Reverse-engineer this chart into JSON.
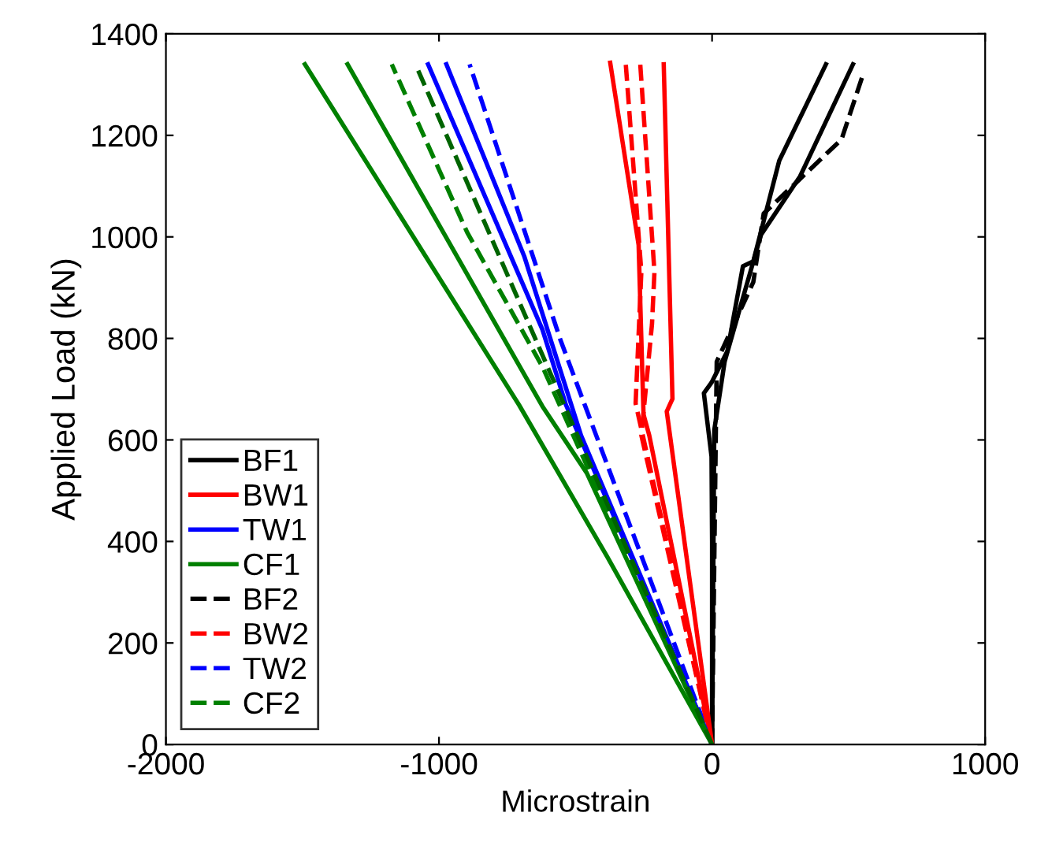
{
  "chart_data": {
    "type": "line",
    "xlabel": "Microstrain",
    "ylabel": "Applied Load (kN)",
    "xlim": [
      -2000,
      1000
    ],
    "xticks": [
      -2000,
      -1000,
      0,
      1000
    ],
    "ylim": [
      0,
      1400
    ],
    "yticks": [
      0,
      200,
      400,
      600,
      800,
      1000,
      1200,
      1400
    ],
    "grid": false,
    "legend": "bottom left",
    "marker": "none",
    "series": [
      {
        "name": "BF1",
        "color": "#000000",
        "line_style": "solid",
        "x": [
          0,
          0,
          -2,
          -30,
          -2,
          56,
          113,
          151,
          246,
          417
        ],
        "values": [
          0,
          400,
          567,
          692,
          713,
          775,
          942,
          952,
          1150,
          1340
        ]
      },
      {
        "name": "BW1",
        "color": "#ff0000",
        "line_style": "solid",
        "x": [
          0,
          -230,
          -251,
          -269,
          -373
        ],
        "values": [
          0,
          609,
          650,
          984,
          1343
        ]
      },
      {
        "name": "TW1",
        "color": "#0000ff",
        "line_style": "solid",
        "x": [
          0,
          -535,
          -621,
          -1040
        ],
        "values": [
          0,
          669,
          817,
          1340
        ]
      },
      {
        "name": "CF1",
        "color": "#008000",
        "line_style": "solid",
        "x": [
          0,
          -383,
          -707,
          -1491
        ],
        "values": [
          0,
          369,
          669,
          1340
        ]
      },
      {
        "name": "BF2",
        "color": "#000000",
        "line_style": "dashed",
        "x": [
          0,
          17,
          151,
          189,
          474,
          551
        ],
        "values": [
          0,
          754,
          911,
          1046,
          1192,
          1317
        ]
      },
      {
        "name": "BW2",
        "color": "#ff0000",
        "line_style": "dashed",
        "x": [
          0,
          -280,
          -259,
          -316
        ],
        "values": [
          0,
          672,
          931,
          1340
        ]
      },
      {
        "name": "TW2",
        "color": "#0000ff",
        "line_style": "dashed",
        "x": [
          0,
          -554,
          -888
        ],
        "values": [
          0,
          795,
          1340
        ]
      },
      {
        "name": "CF2",
        "color": "#008000",
        "line_style": "dashed",
        "x": [
          0,
          -621,
          -897,
          -1173
        ],
        "values": [
          0,
          744,
          1009,
          1340
        ]
      },
      {
        "color": "#000000",
        "line_style": "solid",
        "x": [
          0,
          8,
          46,
          179,
          322,
          516
        ],
        "values": [
          0,
          619,
          754,
          1004,
          1119,
          1340
        ]
      },
      {
        "color": "#ff0000",
        "line_style": "solid",
        "x": [
          0,
          -166,
          -145,
          -177
        ],
        "values": [
          0,
          656,
          681,
          1340
        ]
      },
      {
        "color": "#0000ff",
        "line_style": "solid",
        "x": [
          0,
          -480,
          -688,
          -973
        ],
        "values": [
          0,
          609,
          962,
          1340
        ]
      },
      {
        "color": "#008000",
        "line_style": "solid",
        "x": [
          0,
          -459,
          -621,
          -1335
        ],
        "values": [
          0,
          535,
          666,
          1340
        ]
      },
      {
        "color": "#ff0000",
        "line_style": "dashed",
        "x": [
          0,
          -259,
          -220,
          -211,
          -263
        ],
        "values": [
          0,
          609,
          828,
          931,
          1340
        ]
      },
      {
        "color": "#006400",
        "line_style": "dashed",
        "x": [
          0,
          -459,
          -823,
          -1086
        ],
        "values": [
          0,
          567,
          1016,
          1340
        ]
      }
    ]
  }
}
